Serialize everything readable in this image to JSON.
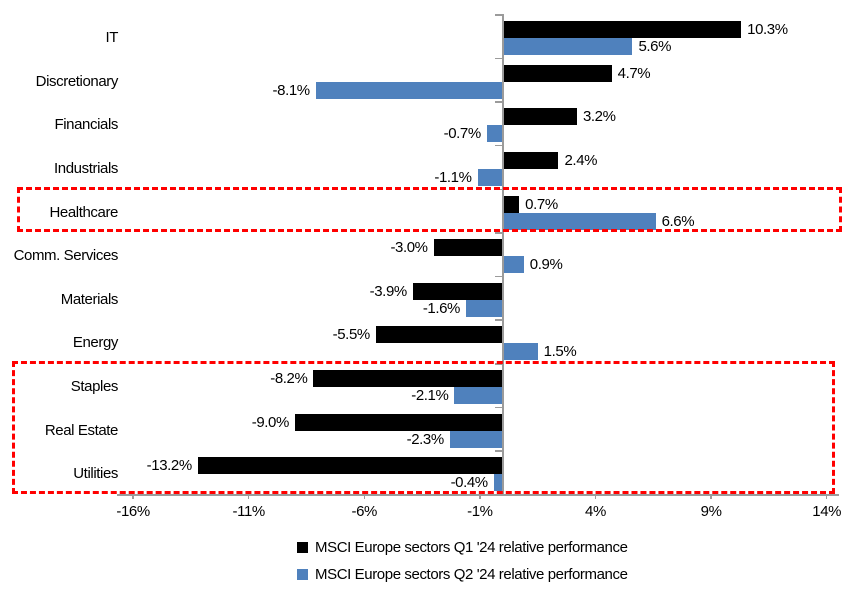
{
  "chart_data": {
    "type": "bar",
    "orientation": "horizontal",
    "title": "",
    "xlabel": "",
    "ylabel": "",
    "grid": false,
    "legend_position": "bottom",
    "categories": [
      "IT",
      "Discretionary",
      "Financials",
      "Industrials",
      "Healthcare",
      "Comm. Services",
      "Materials",
      "Energy",
      "Staples",
      "Real Estate",
      "Utilities"
    ],
    "series": [
      {
        "name": "MSCI Europe sectors Q1 '24 relative performance",
        "color": "#000000",
        "values": [
          10.3,
          4.7,
          3.2,
          2.4,
          0.7,
          -3.0,
          -3.9,
          -5.5,
          -8.2,
          -9.0,
          -13.2
        ],
        "labels": [
          "10.3%",
          "4.7%",
          "3.2%",
          "2.4%",
          "0.7%",
          "-3.0%",
          "-3.9%",
          "-5.5%",
          "-8.2%",
          "-9.0%",
          "-13.2%"
        ]
      },
      {
        "name": "MSCI Europe sectors Q2 '24 relative performance",
        "color": "#4f81bd",
        "values": [
          5.6,
          -8.1,
          -0.7,
          -1.1,
          6.6,
          0.9,
          -1.6,
          1.5,
          -2.1,
          -2.3,
          -0.4
        ],
        "labels": [
          "5.6%",
          "-8.1%",
          "-0.7%",
          "-1.1%",
          "6.6%",
          "0.9%",
          "-1.6%",
          "1.5%",
          "-2.1%",
          "-2.3%",
          "-0.4%"
        ]
      }
    ],
    "x_ticks": [
      {
        "value": -16,
        "label": "-16%"
      },
      {
        "value": -11,
        "label": "-11%"
      },
      {
        "value": -6,
        "label": "-6%"
      },
      {
        "value": -1,
        "label": "-1%"
      },
      {
        "value": 4,
        "label": "4%"
      },
      {
        "value": 9,
        "label": "9%"
      },
      {
        "value": 14,
        "label": "14%"
      }
    ],
    "xlim": [
      -16.7,
      14.6
    ],
    "highlight_color": "#ff0000",
    "axis_color": "#9b9b9b",
    "highlights": [
      {
        "name": "healthcare-highlight",
        "categories": [
          "Healthcare"
        ]
      },
      {
        "name": "defensives-highlight",
        "categories": [
          "Staples",
          "Real Estate",
          "Utilities"
        ]
      }
    ]
  }
}
